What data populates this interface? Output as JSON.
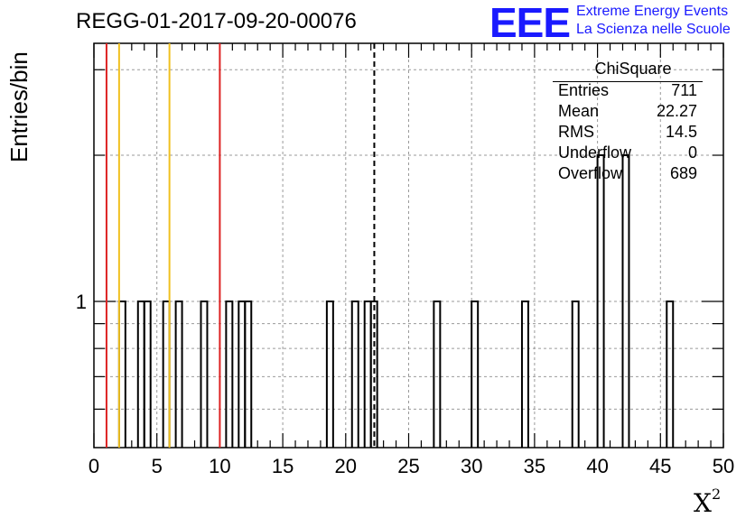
{
  "title": "REGG-01-2017-09-20-00076",
  "logo": {
    "mark": "EEE",
    "line1": "Extreme Energy Events",
    "line2": "La Scienza nelle Scuole",
    "color": "#1a1aff"
  },
  "stats": {
    "title": "ChiSquare",
    "rows": [
      {
        "label": "Entries",
        "value": "711"
      },
      {
        "label": "Mean",
        "value": "22.27"
      },
      {
        "label": "RMS",
        "value": "14.5"
      },
      {
        "label": "Underflow",
        "value": "0"
      },
      {
        "label": "Overflow",
        "value": "689"
      }
    ]
  },
  "chart_data": {
    "type": "bar",
    "histogram": true,
    "title": "REGG-01-2017-09-20-00076",
    "xlabel": "X",
    "xlabel_sup": "2",
    "ylabel": "Entries/bin",
    "xlim": [
      0,
      50
    ],
    "ylim": [
      0.5,
      3.4
    ],
    "log_y": true,
    "grid": true,
    "bin_width": 0.5,
    "x_ticks": [
      0,
      5,
      10,
      15,
      20,
      25,
      30,
      35,
      40,
      45,
      50
    ],
    "y_tick_labels": [
      1
    ],
    "bins": [
      {
        "x": 2.0,
        "count": 1
      },
      {
        "x": 3.5,
        "count": 1
      },
      {
        "x": 4.0,
        "count": 1
      },
      {
        "x": 5.5,
        "count": 1
      },
      {
        "x": 6.5,
        "count": 1
      },
      {
        "x": 8.5,
        "count": 1
      },
      {
        "x": 10.5,
        "count": 1
      },
      {
        "x": 11.5,
        "count": 1
      },
      {
        "x": 12.0,
        "count": 1
      },
      {
        "x": 18.5,
        "count": 1
      },
      {
        "x": 20.5,
        "count": 1
      },
      {
        "x": 21.5,
        "count": 1
      },
      {
        "x": 22.0,
        "count": 1
      },
      {
        "x": 27.0,
        "count": 1
      },
      {
        "x": 30.0,
        "count": 1
      },
      {
        "x": 34.0,
        "count": 1
      },
      {
        "x": 38.0,
        "count": 1
      },
      {
        "x": 40.0,
        "count": 2
      },
      {
        "x": 42.0,
        "count": 2
      },
      {
        "x": 45.5,
        "count": 1
      }
    ],
    "vertical_lines": [
      {
        "x": 1,
        "color": "#dd2222",
        "style": "solid"
      },
      {
        "x": 2,
        "color": "#f0c020",
        "style": "solid"
      },
      {
        "x": 6,
        "color": "#f0c020",
        "style": "solid"
      },
      {
        "x": 10,
        "color": "#dd2222",
        "style": "solid"
      },
      {
        "x": 22.27,
        "color": "#000000",
        "style": "dashed"
      }
    ]
  }
}
